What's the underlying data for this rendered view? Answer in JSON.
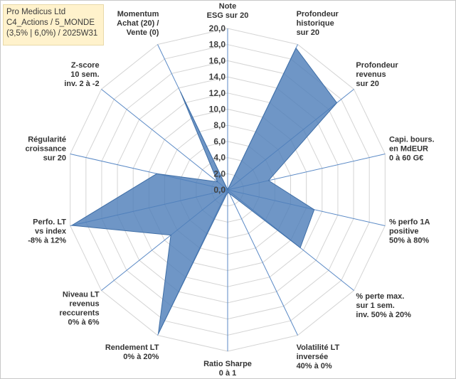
{
  "header": {
    "line1": "Pro Medicus Ltd",
    "line2": "C4_Actions / 5_MONDE",
    "line3": "(3,5% | 6,0%) / 2025W31"
  },
  "chart_data": {
    "type": "radar",
    "r_range": [
      0,
      20
    ],
    "r_step": 2,
    "tick_labels": [
      "0,0",
      "2,0",
      "4,0",
      "6,0",
      "8,0",
      "10,0",
      "12,0",
      "14,0",
      "16,0",
      "18,0",
      "20,0"
    ],
    "grid": true,
    "series_color": "#4f7fba",
    "axes": [
      {
        "label": [
          "Note",
          "ESG sur 20"
        ],
        "value": 0
      },
      {
        "label": [
          "Profondeur",
          "historique",
          "sur 20"
        ],
        "value": 19.5
      },
      {
        "label": [
          "Profondeur",
          "revenus",
          "sur 20"
        ],
        "value": 17.3
      },
      {
        "label": [
          "Capi. bours.",
          "en MdEUR",
          "0 à 60 G€"
        ],
        "value": 5.2
      },
      {
        "label": [
          "% perfo 1A",
          "positive",
          "50% à 80%"
        ],
        "value": 11.0
      },
      {
        "label": [
          "% perte max.",
          "sur 1 sem.",
          "inv. 50% à 20%"
        ],
        "value": 11.5
      },
      {
        "label": [
          "Volatilité LT",
          "inversée",
          "40% à 0%"
        ],
        "value": 0.5
      },
      {
        "label": [
          "Ratio Sharpe",
          "0 à 1"
        ],
        "value": 0.3
      },
      {
        "label": [
          "Rendement LT",
          "0% à 20%"
        ],
        "value": 19.8
      },
      {
        "label": [
          "Niveau LT",
          "revenus",
          "reccurents",
          "0% à 6%"
        ],
        "value": 9.0
      },
      {
        "label": [
          "Perfo. LT",
          "vs index",
          "-8% à 12%"
        ],
        "value": 19.8
      },
      {
        "label": [
          "Régularité",
          "croissance",
          "sur 20"
        ],
        "value": 9.0
      },
      {
        "label": [
          "Z-score",
          "10 sem.",
          "inv. 2 à -2"
        ],
        "value": 1.6
      },
      {
        "label": [
          "Momentum",
          "Achat (20) /",
          "Vente (0)"
        ],
        "value": 13.5
      }
    ]
  }
}
